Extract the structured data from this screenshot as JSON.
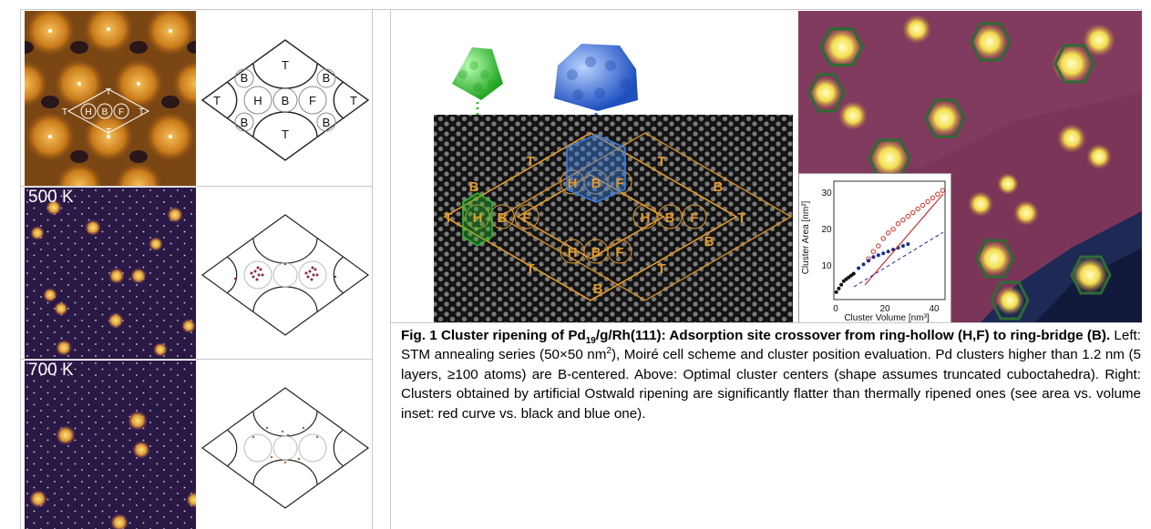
{
  "stm_series": {
    "panel_labels": [
      "500 K",
      "700 K"
    ],
    "site_labels": [
      "T",
      "H",
      "B",
      "F",
      "T",
      "T",
      "T"
    ]
  },
  "scheme_labels": {
    "top": "T",
    "left": "T",
    "right": "T",
    "bottom": "T",
    "b_top_left": "B",
    "b_top_right": "B",
    "b_bottom_left": "B",
    "b_bottom_right": "B",
    "h": "H",
    "b_center": "B",
    "f": "F"
  },
  "model": {
    "site_h": "H",
    "site_b": "B",
    "site_f": "F",
    "site_t": "T"
  },
  "inset_chart": {
    "chart_data": {
      "type": "scatter",
      "xlabel": "Cluster Volume [nm³]",
      "ylabel": "Cluster Area [nm²]",
      "x_ticks": [
        "0",
        "20",
        "40"
      ],
      "y_ticks": [
        "10",
        "20",
        "30"
      ],
      "xlim": [
        0,
        45
      ],
      "ylim": [
        3,
        35
      ],
      "series": [
        {
          "color": "#d0302a",
          "x": [
            14,
            16,
            18,
            20,
            22,
            24,
            26,
            28,
            30,
            32,
            34,
            36,
            38,
            40,
            42,
            44
          ],
          "y": [
            14,
            16,
            17.5,
            19.5,
            21,
            22,
            23.5,
            24.5,
            25.5,
            26.5,
            27.5,
            28.5,
            29.5,
            30.5,
            31.5,
            32.5
          ]
        },
        {
          "color": "#1c2f8c",
          "x": [
            8,
            10,
            12,
            14,
            16,
            18,
            20,
            22,
            24,
            26,
            28,
            30
          ],
          "y": [
            10,
            11.5,
            12.5,
            13.5,
            14.5,
            15,
            15.5,
            16,
            16.5,
            17,
            17.5,
            18
          ]
        },
        {
          "color": "#111111",
          "x": [
            1,
            2,
            3,
            4,
            5,
            6,
            7,
            8
          ],
          "y": [
            5,
            6,
            7,
            8,
            8.5,
            9,
            9.5,
            10
          ]
        }
      ]
    }
  },
  "caption": {
    "title_a": "Fig. 1 Cluster ripening of Pd",
    "title_sub": "19",
    "title_b": "/g/Rh(111): Adsorption site crossover from ring-hollow (H,F) to ring-bridge (B).",
    "body_a": " Left: STM annealing series (50×50 nm",
    "body_sup": "2",
    "body_b": "), Moiré cell scheme and cluster position evaluation. Pd clusters higher than 1.2 nm (5 layers, ≥100 atoms) are B-centered. Above: Optimal cluster centers (shape assumes truncated cuboctahedra). Right: Clusters obtained by artificial Ostwald ripening are significantly flatter than thermally ripened ones (see area vs. volume inset: red curve vs. black and blue one)."
  },
  "colors": {
    "stm_orange": "#c97a1a",
    "stm_purple": "#3a1f5a",
    "model_gold": "#e39a2a",
    "green_cluster": "#36c63a",
    "blue_cluster": "#2f6fe0",
    "hex_outline": "#2e6b34"
  }
}
